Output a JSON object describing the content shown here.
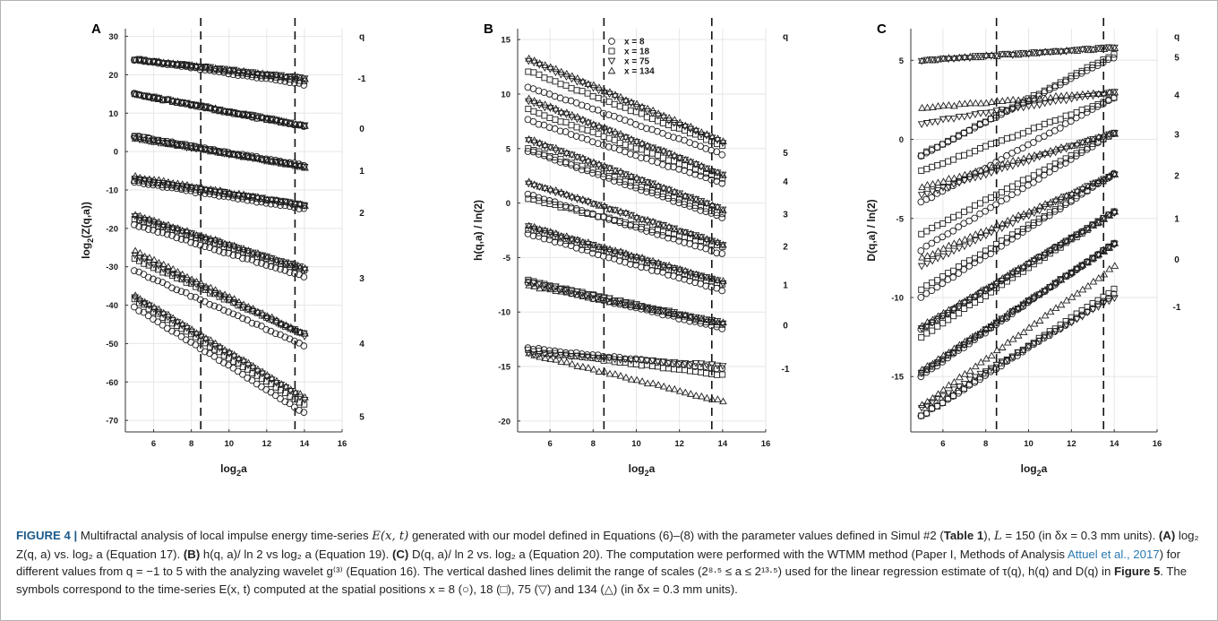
{
  "figure": {
    "panels": [
      {
        "letter": "A",
        "ylabel": "log2(Z(q,a))",
        "xlabel": "log2a",
        "xticks": [
          6,
          8,
          10,
          12,
          14,
          16
        ],
        "yticks": [
          30,
          20,
          10,
          0,
          -10,
          -20,
          -30,
          -40,
          -50,
          -60,
          -70
        ],
        "q_header": "q",
        "q_labels": [
          {
            "text": "-1",
            "y": 19
          },
          {
            "text": "0",
            "y": 6
          },
          {
            "text": "1",
            "y": -5
          },
          {
            "text": "2",
            "y": -16
          },
          {
            "text": "3",
            "y": -33
          },
          {
            "text": "4",
            "y": -50
          },
          {
            "text": "5",
            "y": -69
          }
        ]
      },
      {
        "letter": "B",
        "ylabel": "h(q,a) / ln(2)",
        "xlabel": "log2a",
        "xticks": [
          6,
          8,
          10,
          12,
          14,
          16
        ],
        "yticks": [
          15,
          10,
          5,
          0,
          -5,
          -10,
          -15,
          -20
        ],
        "q_header": "q",
        "q_labels": [
          {
            "text": "5",
            "y": 4.6
          },
          {
            "text": "4",
            "y": 2
          },
          {
            "text": "3",
            "y": -1
          },
          {
            "text": "2",
            "y": -4
          },
          {
            "text": "1",
            "y": -7.5
          },
          {
            "text": "0",
            "y": -11.2
          },
          {
            "text": "-1",
            "y": -15.2
          }
        ],
        "legend": [
          {
            "marker": "circle",
            "label": "x = 8"
          },
          {
            "marker": "square",
            "label": "x = 18"
          },
          {
            "marker": "triangle-down",
            "label": "x = 75"
          },
          {
            "marker": "triangle-up",
            "label": "x = 134"
          }
        ]
      },
      {
        "letter": "C",
        "ylabel": "D(q,a) / ln(2)",
        "xlabel": "log2a",
        "xticks": [
          6,
          8,
          10,
          12,
          14,
          16
        ],
        "yticks": [
          5,
          0,
          -5,
          -10,
          -15
        ],
        "q_header": "q",
        "q_labels": [
          {
            "text": "5",
            "y": 5.2
          },
          {
            "text": "4",
            "y": 2.8
          },
          {
            "text": "3",
            "y": 0.3
          },
          {
            "text": "2",
            "y": -2.3
          },
          {
            "text": "1",
            "y": -5
          },
          {
            "text": "0",
            "y": -7.6
          },
          {
            "text": "-1",
            "y": -10.6
          }
        ]
      }
    ],
    "shared": {
      "x_range": [
        4.5,
        16
      ],
      "dashed_lines_x": [
        8.5,
        13.5
      ],
      "x_positions": [
        5,
        5.25,
        5.5,
        5.75,
        6,
        6.25,
        6.5,
        6.75,
        7,
        7.25,
        7.5,
        7.75,
        8,
        8.25,
        8.5,
        8.75,
        9,
        9.25,
        9.5,
        9.75,
        10,
        10.25,
        10.5,
        10.75,
        11,
        11.25,
        11.5,
        11.75,
        12,
        12.25,
        12.5,
        12.75,
        13,
        13.25,
        13.5,
        13.75,
        14
      ],
      "markers": [
        "circle",
        "square",
        "triangle-down",
        "triangle-up"
      ]
    }
  },
  "chart_data": [
    {
      "type": "scatter",
      "title": "A",
      "xlabel": "log2a",
      "ylabel": "log2(Z(q,a))",
      "xlim": [
        4.5,
        16
      ],
      "ylim": [
        -73,
        32
      ],
      "series": [
        {
          "q": -1,
          "start": [
            24,
            24,
            24,
            24
          ],
          "end": [
            17.5,
            18.5,
            19,
            19
          ]
        },
        {
          "q": 0,
          "start": [
            15,
            15,
            15,
            15
          ],
          "end": [
            6.5,
            6.5,
            6.8,
            6.8
          ]
        },
        {
          "q": 1,
          "start": [
            4,
            4,
            3.5,
            3.5
          ],
          "end": [
            -3.5,
            -4,
            -4,
            -4
          ]
        },
        {
          "q": 2,
          "start": [
            -8,
            -7.5,
            -7,
            -6.5
          ],
          "end": [
            -15,
            -14,
            -14,
            -14
          ]
        },
        {
          "q": 3,
          "start": [
            -19,
            -17.5,
            -17,
            -16.5
          ],
          "end": [
            -32.5,
            -31,
            -30.5,
            -30.5
          ]
        },
        {
          "q": 4,
          "start": [
            -31,
            -28,
            -27,
            -26
          ],
          "end": [
            -50.5,
            -47.5,
            -48,
            -47.5
          ]
        },
        {
          "q": 5,
          "start": [
            -40.5,
            -38.5,
            -38,
            -37.5
          ],
          "end": [
            -68,
            -66,
            -64.5,
            -64
          ]
        }
      ]
    },
    {
      "type": "scatter",
      "title": "B",
      "xlabel": "log2a",
      "ylabel": "h(q,a) / ln(2)",
      "xlim": [
        4.5,
        16
      ],
      "ylim": [
        -21,
        16
      ],
      "series": [
        {
          "q": 5,
          "start": [
            10.7,
            12.1,
            13.1,
            13.3
          ],
          "end": [
            4.5,
            5.3,
            5.5,
            5.7
          ]
        },
        {
          "q": 4,
          "start": [
            7.6,
            8.6,
            9.4,
            9.6
          ],
          "end": [
            1.8,
            2.2,
            2.6,
            2.6
          ]
        },
        {
          "q": 3,
          "start": [
            4.8,
            5,
            5.8,
            5.9
          ],
          "end": [
            -1.3,
            -1,
            -0.6,
            -0.6
          ]
        },
        {
          "q": 2,
          "start": [
            0.8,
            0.4,
            1.8,
            1.9
          ],
          "end": [
            -4.7,
            -4,
            -3.8,
            -3.8
          ]
        },
        {
          "q": 1,
          "start": [
            -2.8,
            -2.4,
            -2.2,
            -2.1
          ],
          "end": [
            -8,
            -7.5,
            -7.3,
            -7.2
          ]
        },
        {
          "q": 0,
          "start": [
            -7.3,
            -7.1,
            -7.2,
            -7.6
          ],
          "end": [
            -11.5,
            -11.2,
            -11,
            -11
          ]
        },
        {
          "q": -1,
          "start": [
            -13.3,
            -13.5,
            -13.8,
            -13.8
          ],
          "end": [
            -15.2,
            -15.8,
            -14.9,
            -18.2
          ]
        }
      ]
    },
    {
      "type": "scatter",
      "title": "C",
      "xlabel": "log2a",
      "ylabel": "D(q,a) / ln(2)",
      "xlim": [
        4.5,
        16
      ],
      "ylim": [
        -18.5,
        7
      ],
      "series": [
        {
          "q": 5,
          "start": [
            -1,
            -1,
            5,
            5
          ],
          "end": [
            5.2,
            5.4,
            5.8,
            5.8
          ]
        },
        {
          "q": 4,
          "start": [
            -4,
            -2,
            1,
            2
          ],
          "end": [
            2.6,
            2.6,
            3,
            3
          ]
        },
        {
          "q": 3,
          "start": [
            -7,
            -6,
            -3.5,
            -3
          ],
          "end": [
            0.4,
            0.4,
            0.4,
            0.4
          ]
        },
        {
          "q": 2,
          "start": [
            -10,
            -9.5,
            -8,
            -7.5
          ],
          "end": [
            -2.2,
            -2.2,
            -2.2,
            -2.2
          ]
        },
        {
          "q": 1,
          "start": [
            -12,
            -12.5,
            -12,
            -11.8
          ],
          "end": [
            -4.6,
            -4.6,
            -4.6,
            -4.6
          ]
        },
        {
          "q": 0,
          "start": [
            -15,
            -14.8,
            -14.8,
            -14.6
          ],
          "end": [
            -6.6,
            -6.6,
            -6.6,
            -6.6
          ]
        },
        {
          "q": -1,
          "start": [
            -17.5,
            -17.5,
            -17,
            -16.8
          ],
          "end": [
            -9.8,
            -9.5,
            -10,
            -8
          ]
        }
      ]
    }
  ],
  "caption": {
    "lead": "FIGURE 4 |",
    "text_1": " Multifractal analysis of local impulse energy time-series ",
    "math_Ext": "E(x, t)",
    "text_2": " generated with our model defined in Equations (6)–(8) with the parameter values defined in Simul #2 (",
    "table_ref": "Table 1",
    "text_3": "), ",
    "math_L": "L",
    "text_4": " = 150 (in δx = 0.3 mm units). ",
    "panel_A": "(A)",
    "text_5": " log₂ Z(q, a) vs. log₂ a (Equation 17). ",
    "panel_B": "(B)",
    "text_6": " h(q, a)/ ln 2 vs log₂ a (Equation 19). ",
    "panel_C": "(C)",
    "text_7": " D(q, a)/ ln 2 vs. log₂ a (Equation 20). The computation were performed with the WTMM method (Paper I, Methods of Analysis ",
    "citation": "Attuel et al., 2017",
    "text_8": ") for different values from q = −1 to 5 with the analyzing wavelet g⁽³⁾ (Equation 16). The vertical dashed lines delimit the range of scales (2⁸·⁵ ≤ a ≤ 2¹³·⁵) used for the linear regression estimate of τ(q), h(q) and D(q) in ",
    "figure_ref": "Figure 5",
    "text_9": ". The symbols correspond to the time-series E(x, t) computed at the spatial positions x = 8 (○), 18 (□), 75 (▽) and 134 (△) (in δx = 0.3 mm units)."
  }
}
